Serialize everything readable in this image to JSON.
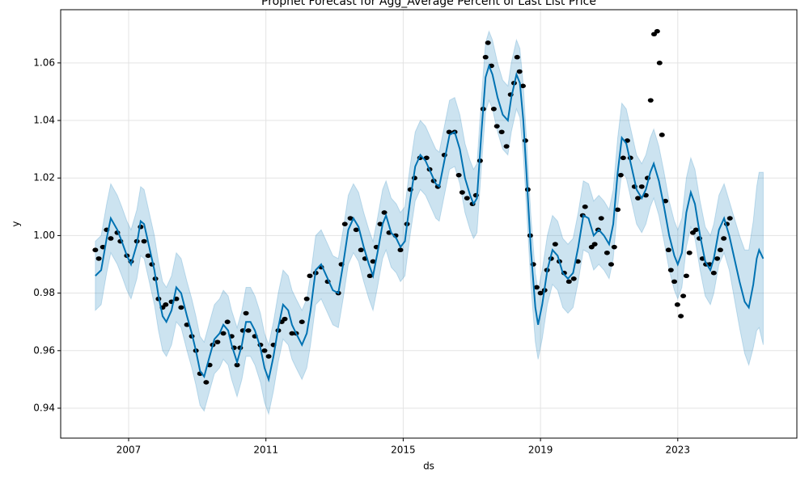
{
  "chart_data": {
    "type": "line",
    "title": "Prophet Forecast for Agg_Average Percent of Last List Price",
    "xlabel": "ds",
    "ylabel": "y",
    "xlim": [
      2005.02,
      2026.47
    ],
    "ylim": [
      0.9296,
      1.0785
    ],
    "xticks": [
      2007,
      2011,
      2015,
      2019,
      2023
    ],
    "yticks": [
      0.94,
      0.96,
      0.98,
      {
        "value": 1,
        "label": "1.00"
      },
      1.02,
      1.04,
      1.06
    ],
    "grid": true,
    "observed": {
      "color": "#000000",
      "x": [
        2006.03,
        2006.13,
        2006.25,
        2006.36,
        2006.48,
        2006.67,
        2006.76,
        2006.95,
        2007.07,
        2007.24,
        2007.35,
        2007.45,
        2007.57,
        2007.68,
        2007.78,
        2007.87,
        2007.99,
        2008.08,
        2008.25,
        2008.39,
        2008.53,
        2008.7,
        2008.84,
        2008.96,
        2009.08,
        2009.26,
        2009.36,
        2009.45,
        2009.59,
        2009.76,
        2009.88,
        2010.0,
        2010.07,
        2010.16,
        2010.25,
        2010.33,
        2010.42,
        2010.49,
        2010.68,
        2010.84,
        2010.96,
        2011.08,
        2011.22,
        2011.36,
        2011.46,
        2011.55,
        2011.76,
        2011.88,
        2012.05,
        2012.19,
        2012.28,
        2012.45,
        2012.61,
        2012.8,
        2013.11,
        2013.2,
        2013.3,
        2013.46,
        2013.63,
        2013.77,
        2013.89,
        2014.03,
        2014.12,
        2014.22,
        2014.33,
        2014.45,
        2014.59,
        2014.78,
        2014.92,
        2015.11,
        2015.21,
        2015.33,
        2015.49,
        2015.68,
        2015.77,
        2015.89,
        2016.01,
        2016.2,
        2016.34,
        2016.5,
        2016.62,
        2016.72,
        2016.86,
        2017.02,
        2017.12,
        2017.24,
        2017.33,
        2017.4,
        2017.47,
        2017.57,
        2017.64,
        2017.73,
        2017.87,
        2018.01,
        2018.13,
        2018.23,
        2018.32,
        2018.39,
        2018.49,
        2018.56,
        2018.63,
        2018.7,
        2018.79,
        2018.89,
        2019.0,
        2019.12,
        2019.19,
        2019.31,
        2019.43,
        2019.55,
        2019.69,
        2019.83,
        2019.97,
        2020.09,
        2020.23,
        2020.3,
        2020.49,
        2020.58,
        2020.68,
        2020.77,
        2020.94,
        2021.06,
        2021.15,
        2021.25,
        2021.34,
        2021.41,
        2021.53,
        2021.62,
        2021.74,
        2021.84,
        2021.95,
        2022.07,
        2022.12,
        2022.21,
        2022.31,
        2022.4,
        2022.47,
        2022.54,
        2022.64,
        2022.73,
        2022.8,
        2022.9,
        2022.99,
        2023.09,
        2023.16,
        2023.25,
        2023.34,
        2023.44,
        2023.53,
        2023.63,
        2023.72,
        2023.82,
        2023.93,
        2024.05,
        2024.15,
        2024.24,
        2024.34,
        2024.43,
        2024.52
      ],
      "values": [
        0.995,
        0.992,
        0.996,
        1.002,
        0.999,
        1.001,
        0.998,
        0.993,
        0.991,
        0.998,
        1.003,
        0.998,
        0.993,
        0.99,
        0.985,
        0.978,
        0.975,
        0.976,
        0.977,
        0.978,
        0.975,
        0.969,
        0.965,
        0.96,
        0.952,
        0.949,
        0.955,
        0.962,
        0.963,
        0.966,
        0.97,
        0.965,
        0.961,
        0.955,
        0.961,
        0.967,
        0.973,
        0.967,
        0.965,
        0.962,
        0.96,
        0.958,
        0.962,
        0.967,
        0.97,
        0.971,
        0.966,
        0.966,
        0.97,
        0.978,
        0.986,
        0.987,
        0.989,
        0.984,
        0.98,
        0.99,
        1.004,
        1.006,
        1.002,
        0.995,
        0.992,
        0.986,
        0.991,
        0.996,
        1.004,
        1.008,
        1.001,
        1.0,
        0.995,
        1.004,
        1.016,
        1.02,
        1.027,
        1.027,
        1.023,
        1.019,
        1.017,
        1.028,
        1.036,
        1.036,
        1.021,
        1.015,
        1.013,
        1.011,
        1.014,
        1.026,
        1.044,
        1.062,
        1.067,
        1.059,
        1.044,
        1.038,
        1.036,
        1.031,
        1.049,
        1.053,
        1.062,
        1.057,
        1.052,
        1.033,
        1.016,
        1.0,
        0.99,
        0.982,
        0.98,
        0.981,
        0.988,
        0.992,
        0.997,
        0.991,
        0.987,
        0.984,
        0.985,
        0.991,
        1.007,
        1.01,
        0.996,
        0.997,
        1.002,
        1.006,
        0.994,
        0.99,
        0.996,
        1.009,
        1.021,
        1.027,
        1.033,
        1.027,
        1.017,
        1.013,
        1.017,
        1.014,
        1.02,
        1.047,
        1.07,
        1.071,
        1.06,
        1.035,
        1.012,
        0.995,
        0.988,
        0.984,
        0.976,
        0.972,
        0.979,
        0.986,
        0.994,
        1.001,
        1.002,
        0.999,
        0.992,
        0.99,
        0.99,
        0.987,
        0.992,
        0.995,
        0.999,
        1.004,
        1.006
      ]
    },
    "forecast": {
      "color": "#0072B2",
      "band_color": "#0072B2",
      "x": [
        2006.03,
        2006.2,
        2006.36,
        2006.48,
        2006.67,
        2006.8,
        2006.95,
        2007.07,
        2007.24,
        2007.35,
        2007.45,
        2007.6,
        2007.75,
        2007.87,
        2007.99,
        2008.1,
        2008.25,
        2008.39,
        2008.53,
        2008.7,
        2008.84,
        2008.96,
        2009.08,
        2009.2,
        2009.36,
        2009.5,
        2009.65,
        2009.76,
        2009.9,
        2010.0,
        2010.16,
        2010.3,
        2010.42,
        2010.55,
        2010.68,
        2010.84,
        2010.96,
        2011.08,
        2011.22,
        2011.36,
        2011.5,
        2011.65,
        2011.76,
        2011.88,
        2012.05,
        2012.19,
        2012.3,
        2012.45,
        2012.61,
        2012.8,
        2012.95,
        2013.11,
        2013.25,
        2013.4,
        2013.55,
        2013.7,
        2013.85,
        2014.0,
        2014.12,
        2014.25,
        2014.4,
        2014.5,
        2014.65,
        2014.8,
        2014.92,
        2015.05,
        2015.2,
        2015.35,
        2015.5,
        2015.65,
        2015.8,
        2015.95,
        2016.05,
        2016.2,
        2016.35,
        2016.5,
        2016.65,
        2016.8,
        2016.95,
        2017.05,
        2017.15,
        2017.28,
        2017.4,
        2017.5,
        2017.6,
        2017.75,
        2017.9,
        2018.05,
        2018.15,
        2018.3,
        2018.4,
        2018.5,
        2018.6,
        2018.72,
        2018.85,
        2018.93,
        2019.05,
        2019.2,
        2019.35,
        2019.5,
        2019.65,
        2019.8,
        2019.95,
        2020.1,
        2020.25,
        2020.4,
        2020.55,
        2020.7,
        2020.85,
        2021.0,
        2021.12,
        2021.25,
        2021.37,
        2021.5,
        2021.65,
        2021.8,
        2021.95,
        2022.07,
        2022.2,
        2022.3,
        2022.45,
        2022.6,
        2022.75,
        2022.9,
        2023.0,
        2023.12,
        2023.25,
        2023.38,
        2023.5,
        2023.65,
        2023.8,
        2023.95,
        2024.05,
        2024.2,
        2024.35,
        2024.5,
        2024.65,
        2024.8,
        2024.95,
        2025.07,
        2025.2,
        2025.3,
        2025.37,
        2025.49
      ],
      "values": [
        0.986,
        0.988,
        0.999,
        1.006,
        1.002,
        0.998,
        0.993,
        0.99,
        0.997,
        1.005,
        1.004,
        0.996,
        0.988,
        0.979,
        0.972,
        0.97,
        0.974,
        0.982,
        0.98,
        0.972,
        0.966,
        0.96,
        0.953,
        0.951,
        0.958,
        0.964,
        0.966,
        0.969,
        0.967,
        0.962,
        0.956,
        0.962,
        0.97,
        0.97,
        0.967,
        0.961,
        0.954,
        0.95,
        0.958,
        0.968,
        0.976,
        0.974,
        0.969,
        0.966,
        0.962,
        0.966,
        0.974,
        0.988,
        0.99,
        0.985,
        0.981,
        0.98,
        0.99,
        1.002,
        1.006,
        1.003,
        0.996,
        0.99,
        0.986,
        0.994,
        1.004,
        1.007,
        1.001,
        0.999,
        0.996,
        0.998,
        1.012,
        1.024,
        1.028,
        1.026,
        1.022,
        1.018,
        1.017,
        1.026,
        1.035,
        1.036,
        1.03,
        1.02,
        1.014,
        1.011,
        1.013,
        1.036,
        1.055,
        1.059,
        1.056,
        1.048,
        1.042,
        1.04,
        1.048,
        1.056,
        1.053,
        1.04,
        1.02,
        0.995,
        0.975,
        0.969,
        0.976,
        0.988,
        0.995,
        0.993,
        0.987,
        0.985,
        0.987,
        0.996,
        1.007,
        1.006,
        1.0,
        1.002,
        1.0,
        0.997,
        1.004,
        1.022,
        1.034,
        1.032,
        1.024,
        1.016,
        1.013,
        1.016,
        1.022,
        1.025,
        1.019,
        1.01,
        1.0,
        0.993,
        0.99,
        0.994,
        1.008,
        1.015,
        1.011,
        1.0,
        0.991,
        0.988,
        0.992,
        1.002,
        1.006,
        1.0,
        0.992,
        0.984,
        0.977,
        0.975,
        0.983,
        0.992,
        0.995,
        0.992
      ],
      "lower": [
        0.974,
        0.976,
        0.987,
        0.994,
        0.99,
        0.986,
        0.981,
        0.978,
        0.985,
        0.993,
        0.992,
        0.984,
        0.976,
        0.967,
        0.96,
        0.958,
        0.962,
        0.97,
        0.968,
        0.96,
        0.954,
        0.948,
        0.941,
        0.939,
        0.946,
        0.952,
        0.954,
        0.957,
        0.955,
        0.95,
        0.944,
        0.95,
        0.958,
        0.958,
        0.955,
        0.949,
        0.942,
        0.938,
        0.946,
        0.956,
        0.964,
        0.962,
        0.957,
        0.954,
        0.95,
        0.954,
        0.962,
        0.976,
        0.978,
        0.973,
        0.969,
        0.968,
        0.978,
        0.99,
        0.994,
        0.991,
        0.984,
        0.978,
        0.974,
        0.982,
        0.992,
        0.995,
        0.989,
        0.987,
        0.984,
        0.986,
        1.0,
        1.012,
        1.016,
        1.014,
        1.01,
        1.006,
        1.005,
        1.014,
        1.023,
        1.024,
        1.018,
        1.008,
        1.002,
        0.999,
        1.001,
        1.024,
        1.043,
        1.047,
        1.044,
        1.036,
        1.03,
        1.028,
        1.036,
        1.044,
        1.041,
        1.028,
        1.008,
        0.983,
        0.963,
        0.957,
        0.964,
        0.976,
        0.983,
        0.981,
        0.975,
        0.973,
        0.975,
        0.984,
        0.995,
        0.994,
        0.988,
        0.99,
        0.988,
        0.985,
        0.992,
        1.01,
        1.022,
        1.02,
        1.012,
        1.004,
        1.001,
        1.004,
        1.01,
        1.013,
        1.007,
        0.998,
        0.988,
        0.981,
        0.978,
        0.982,
        0.996,
        1.003,
        0.999,
        0.988,
        0.979,
        0.976,
        0.98,
        0.99,
        0.994,
        0.988,
        0.978,
        0.968,
        0.959,
        0.955,
        0.961,
        0.967,
        0.968,
        0.962
      ],
      "upper": [
        0.998,
        1.0,
        1.011,
        1.018,
        1.014,
        1.01,
        1.005,
        1.002,
        1.009,
        1.017,
        1.016,
        1.008,
        1.0,
        0.991,
        0.984,
        0.982,
        0.986,
        0.994,
        0.992,
        0.984,
        0.978,
        0.972,
        0.965,
        0.963,
        0.97,
        0.976,
        0.978,
        0.981,
        0.979,
        0.974,
        0.968,
        0.974,
        0.982,
        0.982,
        0.979,
        0.973,
        0.966,
        0.962,
        0.97,
        0.98,
        0.988,
        0.986,
        0.981,
        0.978,
        0.974,
        0.978,
        0.986,
        1.0,
        1.002,
        0.997,
        0.993,
        0.992,
        1.002,
        1.014,
        1.018,
        1.015,
        1.008,
        1.002,
        0.998,
        1.006,
        1.016,
        1.019,
        1.013,
        1.011,
        1.008,
        1.01,
        1.024,
        1.036,
        1.04,
        1.038,
        1.034,
        1.03,
        1.029,
        1.038,
        1.047,
        1.048,
        1.042,
        1.032,
        1.026,
        1.023,
        1.025,
        1.048,
        1.067,
        1.071,
        1.068,
        1.06,
        1.054,
        1.052,
        1.06,
        1.068,
        1.065,
        1.052,
        1.032,
        1.007,
        0.987,
        0.981,
        0.988,
        1.0,
        1.007,
        1.005,
        0.999,
        0.997,
        0.999,
        1.008,
        1.019,
        1.018,
        1.012,
        1.014,
        1.012,
        1.009,
        1.016,
        1.034,
        1.046,
        1.044,
        1.036,
        1.028,
        1.025,
        1.028,
        1.034,
        1.037,
        1.031,
        1.022,
        1.012,
        1.005,
        1.002,
        1.006,
        1.02,
        1.027,
        1.023,
        1.012,
        1.003,
        1.0,
        1.004,
        1.014,
        1.018,
        1.012,
        1.006,
        1.0,
        0.995,
        0.995,
        1.005,
        1.017,
        1.022,
        1.022
      ]
    }
  }
}
